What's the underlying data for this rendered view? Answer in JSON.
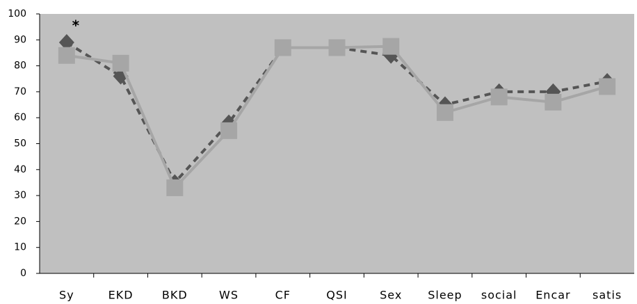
{
  "chart_data": {
    "type": "line",
    "categories": [
      "Sy",
      "EKD",
      "BKD",
      "WS",
      "CF",
      "QSI",
      "Sex",
      "Sleep",
      "social",
      "Encar",
      "satis"
    ],
    "series": [
      {
        "color": "#555555",
        "marker": "diamond",
        "dash": true,
        "values": [
          89,
          76,
          35,
          58,
          87,
          87,
          84,
          65,
          70,
          70,
          74
        ]
      },
      {
        "color": "#a6a6a6",
        "marker": "square",
        "dash": false,
        "values": [
          84,
          81,
          33,
          55,
          87,
          87,
          87.5,
          62,
          68,
          66,
          72
        ]
      }
    ],
    "annotations": [
      "*"
    ],
    "ylim": [
      0,
      100
    ],
    "yticks": [
      0,
      10,
      20,
      30,
      40,
      50,
      60,
      70,
      80,
      90,
      100
    ],
    "background": "#c0c0c0",
    "grid": false
  }
}
